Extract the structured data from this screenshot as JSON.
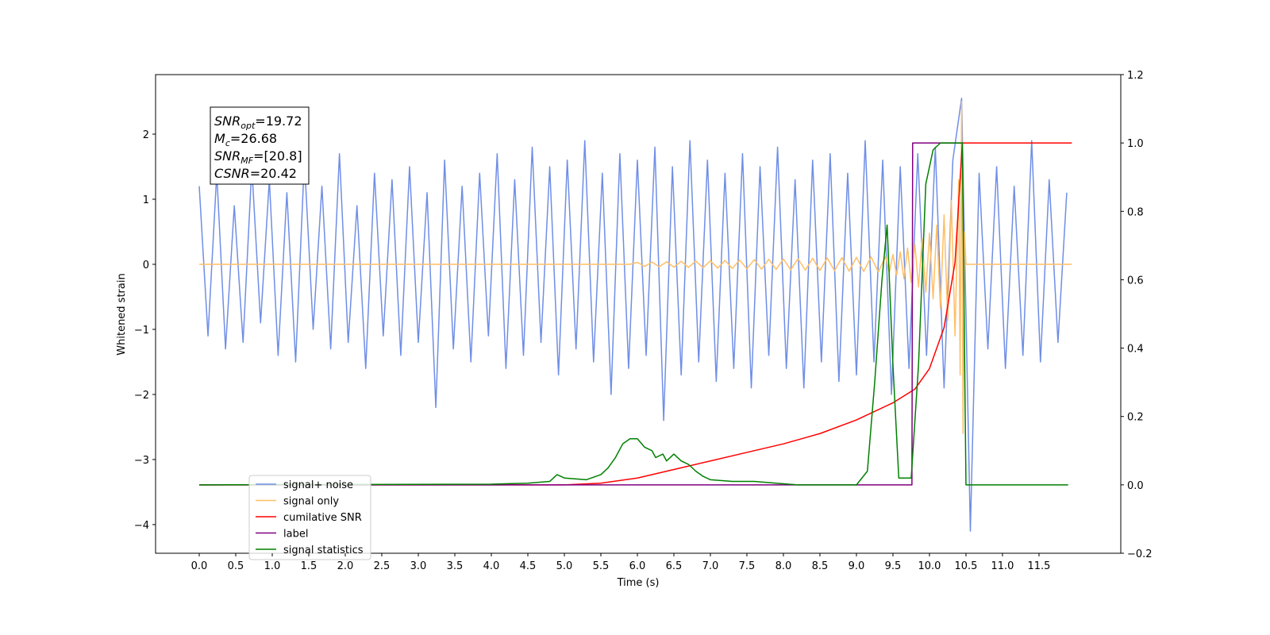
{
  "chart_data": {
    "type": "line",
    "xlabel": "Time (s)",
    "ylabel": "Whitened strain",
    "xlim": [
      -0.598,
      12.62
    ],
    "ylim": [
      -4.44,
      2.915
    ],
    "y2lim": [
      -0.2,
      1.2
    ],
    "xticks": [
      {
        "value": 0,
        "label": "0.0"
      },
      {
        "value": 0.5,
        "label": "0.5"
      },
      {
        "value": 1,
        "label": "1.0"
      },
      {
        "value": 1.5,
        "label": "1.5"
      },
      {
        "value": 2,
        "label": "2.0"
      },
      {
        "value": 2.5,
        "label": "2.5"
      },
      {
        "value": 3,
        "label": "3.0"
      },
      {
        "value": 3.5,
        "label": "3.5"
      },
      {
        "value": 4,
        "label": "4.0"
      },
      {
        "value": 4.5,
        "label": "4.5"
      },
      {
        "value": 5,
        "label": "5.0"
      },
      {
        "value": 5.5,
        "label": "5.5"
      },
      {
        "value": 6,
        "label": "6.0"
      },
      {
        "value": 6.5,
        "label": "6.5"
      },
      {
        "value": 7,
        "label": "7.0"
      },
      {
        "value": 7.5,
        "label": "7.5"
      },
      {
        "value": 8,
        "label": "8.0"
      },
      {
        "value": 8.5,
        "label": "8.5"
      },
      {
        "value": 9,
        "label": "9.0"
      },
      {
        "value": 9.5,
        "label": "9.5"
      },
      {
        "value": 10,
        "label": "10.0"
      },
      {
        "value": 10.5,
        "label": "10.5"
      },
      {
        "value": 11,
        "label": "11.0"
      },
      {
        "value": 11.5,
        "label": "11.5"
      }
    ],
    "yticks": [
      {
        "value": -4,
        "label": "−4"
      },
      {
        "value": -3,
        "label": "−3"
      },
      {
        "value": -2,
        "label": "−2"
      },
      {
        "value": -1,
        "label": "−1"
      },
      0,
      1,
      2
    ],
    "y2ticks": [
      {
        "value": -0.2,
        "label": "−0.2"
      },
      {
        "value": 0,
        "label": "0.0"
      },
      0.2,
      0.4,
      0.6,
      0.8,
      {
        "value": 1,
        "label": "1.0"
      },
      1.2
    ],
    "annotations": [
      {
        "name": "SNR",
        "sub": "opt",
        "text": "=19.72"
      },
      {
        "name": "M",
        "sub": "c",
        "text": "=26.68"
      },
      {
        "name": "SNR",
        "sub": "MF",
        "text": "=[20.8]"
      },
      {
        "name": "CSNR",
        "sub": null,
        "text": "=20.42"
      }
    ],
    "series": [
      {
        "name": "signal+ noise",
        "color": "#6f8ee6",
        "axis": "y",
        "x": [
          0,
          0.12,
          0.24,
          0.36,
          0.48,
          0.6,
          0.72,
          0.84,
          0.96,
          1.08,
          1.2,
          1.32,
          1.44,
          1.56,
          1.68,
          1.8,
          1.92,
          2.04,
          2.16,
          2.28,
          2.4,
          2.52,
          2.64,
          2.76,
          2.88,
          3.0,
          3.12,
          3.24,
          3.36,
          3.48,
          3.6,
          3.72,
          3.84,
          3.96,
          4.08,
          4.2,
          4.32,
          4.44,
          4.56,
          4.68,
          4.8,
          4.92,
          5.04,
          5.16,
          5.28,
          5.4,
          5.52,
          5.64,
          5.76,
          5.88,
          6.0,
          6.12,
          6.24,
          6.36,
          6.48,
          6.6,
          6.72,
          6.84,
          6.96,
          7.08,
          7.2,
          7.32,
          7.44,
          7.56,
          7.68,
          7.8,
          7.92,
          8.04,
          8.16,
          8.28,
          8.4,
          8.52,
          8.64,
          8.76,
          8.88,
          9.0,
          9.12,
          9.24,
          9.36,
          9.48,
          9.6,
          9.72,
          9.84,
          9.96,
          10.08,
          10.2,
          10.32,
          10.44,
          10.56,
          10.68,
          10.8,
          10.92,
          11.04,
          11.16,
          11.28,
          11.4,
          11.52,
          11.64,
          11.76,
          11.88
        ],
        "values": [
          1.2,
          -1.1,
          1.4,
          -1.3,
          0.9,
          -1.2,
          1.5,
          -0.9,
          1.3,
          -1.4,
          1.1,
          -1.5,
          1.6,
          -1.0,
          1.2,
          -1.3,
          1.7,
          -1.2,
          0.9,
          -1.6,
          1.4,
          -1.1,
          1.3,
          -1.4,
          1.5,
          -1.2,
          1.1,
          -2.2,
          1.6,
          -1.3,
          1.2,
          -1.5,
          1.4,
          -1.1,
          1.7,
          -1.6,
          1.3,
          -1.4,
          1.8,
          -1.2,
          1.5,
          -1.7,
          1.6,
          -1.3,
          1.9,
          -1.5,
          1.4,
          -2.0,
          1.7,
          -1.6,
          1.6,
          -1.4,
          1.8,
          -2.4,
          1.5,
          -1.7,
          1.9,
          -1.5,
          1.6,
          -1.8,
          1.4,
          -1.6,
          1.7,
          -1.9,
          1.5,
          -1.4,
          1.8,
          -1.6,
          1.3,
          -1.9,
          1.6,
          -1.5,
          1.7,
          -1.8,
          1.4,
          -1.7,
          1.9,
          -1.5,
          1.6,
          -2.0,
          1.5,
          -1.6,
          1.7,
          -1.4,
          1.8,
          -1.9,
          1.6,
          2.55,
          -4.1,
          1.4,
          -1.3,
          1.5,
          -1.6,
          1.2,
          -1.4,
          1.9,
          -1.5,
          1.3,
          -1.2,
          1.1
        ]
      },
      {
        "name": "signal only",
        "color": "#ffbf66",
        "axis": "y",
        "x": [
          0,
          5.9,
          6.0,
          6.1,
          6.2,
          6.3,
          6.4,
          6.5,
          6.6,
          6.7,
          6.8,
          6.9,
          7.0,
          7.1,
          7.2,
          7.3,
          7.4,
          7.5,
          7.6,
          7.7,
          7.8,
          7.9,
          8.0,
          8.1,
          8.2,
          8.3,
          8.4,
          8.5,
          8.6,
          8.7,
          8.8,
          8.9,
          9.0,
          9.1,
          9.2,
          9.3,
          9.4,
          9.45,
          9.5,
          9.55,
          9.6,
          9.65,
          9.7,
          9.75,
          9.8,
          9.85,
          9.9,
          9.95,
          10.0,
          10.05,
          10.1,
          10.15,
          10.2,
          10.25,
          10.3,
          10.35,
          10.4,
          10.42,
          10.44,
          10.46,
          10.48,
          10.5,
          11.95
        ],
        "values": [
          0,
          0,
          0.03,
          -0.033,
          0.035,
          -0.038,
          0.04,
          -0.043,
          0.046,
          -0.048,
          0.051,
          -0.053,
          0.056,
          -0.059,
          0.061,
          -0.064,
          0.066,
          -0.069,
          0.072,
          -0.074,
          0.077,
          -0.079,
          0.082,
          -0.085,
          0.087,
          -0.09,
          0.092,
          -0.095,
          0.098,
          -0.1,
          0.103,
          -0.105,
          0.108,
          -0.111,
          0.113,
          -0.116,
          0.118,
          -0.13,
          0.15,
          -0.17,
          0.19,
          -0.22,
          0.25,
          -0.28,
          0.31,
          -0.35,
          0.39,
          -0.43,
          0.48,
          -0.53,
          0.6,
          -0.68,
          0.76,
          -0.86,
          0.98,
          -1.1,
          1.3,
          -1.7,
          2.5,
          -2.6,
          0.5,
          0,
          0
        ]
      },
      {
        "name": "cumilative SNR",
        "color": "#ff0000",
        "axis": "y2",
        "x": [
          0,
          5.0,
          5.5,
          6.0,
          6.5,
          7.0,
          7.5,
          8.0,
          8.5,
          9.0,
          9.5,
          9.8,
          10.0,
          10.2,
          10.35,
          10.45,
          11.95
        ],
        "values": [
          0,
          0,
          0.005,
          0.02,
          0.045,
          0.07,
          0.095,
          0.12,
          0.15,
          0.19,
          0.24,
          0.28,
          0.34,
          0.46,
          0.65,
          1.0,
          1.0
        ]
      },
      {
        "name": "label",
        "color": "#800080",
        "axis": "y2",
        "x": [
          0,
          9.76,
          9.77,
          10.45
        ],
        "values": [
          0,
          0,
          1,
          1
        ]
      },
      {
        "name": "signal statistics",
        "color": "#008000",
        "axis": "y2",
        "x": [
          0,
          4.0,
          4.5,
          4.8,
          4.9,
          5.0,
          5.3,
          5.5,
          5.6,
          5.7,
          5.8,
          5.9,
          6.0,
          6.1,
          6.2,
          6.25,
          6.35,
          6.4,
          6.5,
          6.6,
          6.7,
          6.8,
          6.9,
          7.0,
          7.3,
          7.6,
          7.9,
          8.2,
          9.0,
          9.15,
          9.25,
          9.35,
          9.42,
          9.5,
          9.58,
          9.7,
          9.75,
          9.85,
          9.95,
          10.05,
          10.15,
          10.45,
          10.5,
          11.9
        ],
        "values": [
          0,
          0.002,
          0.005,
          0.01,
          0.03,
          0.02,
          0.015,
          0.03,
          0.05,
          0.08,
          0.12,
          0.135,
          0.135,
          0.11,
          0.1,
          0.08,
          0.09,
          0.07,
          0.09,
          0.07,
          0.06,
          0.04,
          0.025,
          0.015,
          0.01,
          0.01,
          0.005,
          0,
          0,
          0.04,
          0.3,
          0.6,
          0.76,
          0.35,
          0.02,
          0.02,
          0.02,
          0.35,
          0.88,
          0.98,
          1.0,
          1.0,
          0,
          0
        ]
      }
    ]
  }
}
